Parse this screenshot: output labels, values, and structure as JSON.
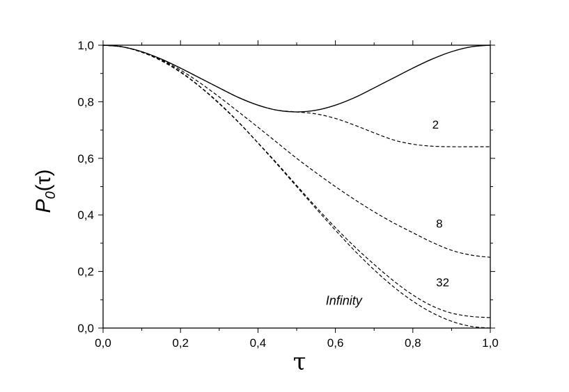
{
  "chart_data": {
    "type": "line",
    "xlabel": "τ",
    "ylabel": {
      "main": "P",
      "sub": "0",
      "arg": "(τ)"
    },
    "xlim": [
      0,
      1
    ],
    "ylim": [
      0,
      1
    ],
    "x_ticks": [
      "0,0",
      "0,2",
      "0,4",
      "0,6",
      "0,8",
      "1,0"
    ],
    "y_ticks": [
      "0,0",
      "0,2",
      "0,4",
      "0,6",
      "0,8",
      "1,0"
    ],
    "grid": false,
    "series": [
      {
        "style": "solid",
        "x": [
          0,
          0.05,
          0.1,
          0.15,
          0.2,
          0.25,
          0.3,
          0.35,
          0.4,
          0.45,
          0.5,
          0.55,
          0.6,
          0.65,
          0.7,
          0.75,
          0.8,
          0.85,
          0.9,
          0.95,
          1.0
        ],
        "y": [
          1.0,
          0.994,
          0.977,
          0.951,
          0.919,
          0.884,
          0.849,
          0.815,
          0.788,
          0.77,
          0.764,
          0.77,
          0.788,
          0.815,
          0.849,
          0.884,
          0.919,
          0.951,
          0.977,
          0.994,
          1.0
        ]
      },
      {
        "name": "2",
        "style": "dashed",
        "x": [
          0,
          0.05,
          0.1,
          0.15,
          0.2,
          0.25,
          0.3,
          0.35,
          0.4,
          0.45,
          0.5,
          0.55,
          0.6,
          0.65,
          0.7,
          0.75,
          0.8,
          0.85,
          0.9,
          0.95,
          1.0
        ],
        "y": [
          1.0,
          0.994,
          0.977,
          0.951,
          0.919,
          0.884,
          0.849,
          0.815,
          0.788,
          0.77,
          0.764,
          0.757,
          0.741,
          0.717,
          0.69,
          0.665,
          0.65,
          0.643,
          0.641,
          0.641,
          0.641
        ]
      },
      {
        "name": "8",
        "style": "dashed",
        "x": [
          0,
          0.05,
          0.1,
          0.15,
          0.2,
          0.25,
          0.3,
          0.35,
          0.4,
          0.45,
          0.5,
          0.55,
          0.6,
          0.65,
          0.7,
          0.75,
          0.8,
          0.85,
          0.9,
          0.95,
          1.0
        ],
        "y": [
          1.0,
          0.994,
          0.976,
          0.948,
          0.912,
          0.867,
          0.817,
          0.764,
          0.71,
          0.655,
          0.6,
          0.549,
          0.5,
          0.454,
          0.411,
          0.372,
          0.337,
          0.303,
          0.275,
          0.258,
          0.25
        ]
      },
      {
        "name": "32",
        "style": "dashed",
        "x": [
          0,
          0.05,
          0.1,
          0.15,
          0.2,
          0.25,
          0.3,
          0.35,
          0.4,
          0.45,
          0.5,
          0.55,
          0.6,
          0.65,
          0.7,
          0.75,
          0.8,
          0.85,
          0.9,
          0.95,
          1.0
        ],
        "y": [
          1.0,
          0.994,
          0.975,
          0.946,
          0.906,
          0.854,
          0.795,
          0.728,
          0.655,
          0.581,
          0.504,
          0.428,
          0.355,
          0.287,
          0.225,
          0.167,
          0.117,
          0.078,
          0.053,
          0.041,
          0.037
        ]
      },
      {
        "name": "Infinity",
        "style": "dashed",
        "x": [
          0,
          0.05,
          0.1,
          0.15,
          0.2,
          0.25,
          0.3,
          0.35,
          0.4,
          0.45,
          0.5,
          0.55,
          0.6,
          0.65,
          0.7,
          0.75,
          0.8,
          0.85,
          0.9,
          0.95,
          1.0
        ],
        "y": [
          1.0,
          0.994,
          0.975,
          0.945,
          0.904,
          0.853,
          0.793,
          0.727,
          0.654,
          0.578,
          0.5,
          0.422,
          0.346,
          0.273,
          0.206,
          0.146,
          0.095,
          0.054,
          0.024,
          0.006,
          0.0
        ]
      }
    ],
    "annotations": [
      {
        "text": "2",
        "x": 0.85,
        "y": 0.705,
        "italic": false
      },
      {
        "text": "8",
        "x": 0.86,
        "y": 0.355,
        "italic": false
      },
      {
        "text": "32",
        "x": 0.86,
        "y": 0.148,
        "italic": false
      },
      {
        "text": "Infinity",
        "x": 0.575,
        "y": 0.082,
        "italic": true
      }
    ]
  }
}
